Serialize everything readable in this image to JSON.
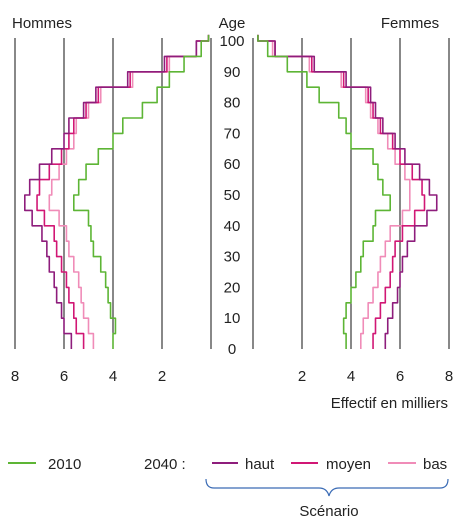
{
  "chart_data": {
    "type": "line",
    "subtype": "population-pyramid",
    "title": "",
    "left_label": "Hommes",
    "right_label": "Femmes",
    "center_label": "Age",
    "xlabel": "Effectif en milliers",
    "xlim": [
      0,
      8
    ],
    "x_ticks": [
      8,
      6,
      4,
      2
    ],
    "x_ticks_right": [
      2,
      4,
      6,
      8
    ],
    "ylim": [
      0,
      100
    ],
    "age_ticks": [
      0,
      10,
      20,
      30,
      40,
      50,
      60,
      70,
      80,
      90,
      100
    ],
    "grid": "vertical",
    "ages": [
      0,
      5,
      10,
      15,
      20,
      25,
      30,
      35,
      40,
      45,
      50,
      55,
      60,
      65,
      70,
      75,
      80,
      85,
      90,
      95,
      100
    ],
    "series": [
      {
        "name": "2010",
        "color": "#5db535",
        "hommes": [
          4.0,
          3.9,
          4.1,
          4.2,
          4.3,
          4.5,
          4.8,
          4.9,
          5.0,
          5.6,
          5.4,
          5.1,
          4.6,
          4.0,
          3.6,
          2.8,
          2.2,
          1.7,
          1.1,
          0.4,
          0.1
        ],
        "femmes": [
          3.8,
          3.7,
          3.8,
          4.0,
          4.2,
          4.4,
          4.5,
          4.9,
          5.0,
          5.6,
          5.3,
          5.1,
          4.9,
          4.0,
          3.8,
          3.5,
          2.7,
          2.2,
          1.4,
          0.6,
          0.2
        ]
      },
      {
        "name": "haut",
        "color": "#8e1d7c",
        "hommes": [
          5.7,
          6.0,
          6.1,
          6.3,
          6.4,
          6.6,
          6.7,
          6.9,
          7.3,
          7.6,
          7.4,
          7.0,
          6.5,
          6.0,
          5.8,
          5.2,
          4.7,
          3.4,
          1.9,
          0.6,
          0.1
        ],
        "femmes": [
          5.4,
          5.5,
          5.7,
          5.9,
          6.0,
          6.1,
          6.3,
          6.6,
          7.1,
          7.5,
          7.2,
          6.8,
          6.2,
          5.8,
          5.3,
          5.0,
          4.8,
          3.8,
          2.5,
          0.9,
          0.2
        ]
      },
      {
        "name": "moyen",
        "color": "#d11775",
        "hommes": [
          5.2,
          5.5,
          5.6,
          5.8,
          5.9,
          6.1,
          6.3,
          6.4,
          6.8,
          7.1,
          7.0,
          6.6,
          6.1,
          5.8,
          5.6,
          5.1,
          4.6,
          3.3,
          1.8,
          0.6,
          0.1
        ],
        "femmes": [
          4.9,
          5.0,
          5.2,
          5.4,
          5.6,
          5.7,
          5.8,
          6.1,
          6.6,
          7.0,
          6.9,
          6.5,
          6.0,
          5.7,
          5.2,
          4.9,
          4.7,
          3.7,
          2.4,
          0.9,
          0.2
        ]
      },
      {
        "name": "bas",
        "color": "#f08cb8",
        "hommes": [
          4.8,
          5.0,
          5.2,
          5.3,
          5.4,
          5.6,
          5.8,
          5.9,
          6.2,
          6.6,
          6.5,
          6.2,
          5.9,
          5.6,
          5.5,
          5.0,
          4.5,
          3.2,
          1.7,
          0.6,
          0.1
        ],
        "femmes": [
          4.4,
          4.5,
          4.7,
          4.9,
          5.1,
          5.2,
          5.4,
          5.6,
          6.1,
          6.4,
          6.4,
          6.2,
          5.8,
          5.5,
          5.1,
          4.8,
          4.6,
          3.6,
          2.3,
          0.8,
          0.2
        ]
      }
    ]
  },
  "legend": {
    "item_2010": "2010",
    "prefix_2040": "2040 :",
    "haut": "haut",
    "moyen": "moyen",
    "bas": "bas",
    "brace_label": "Scénario"
  }
}
